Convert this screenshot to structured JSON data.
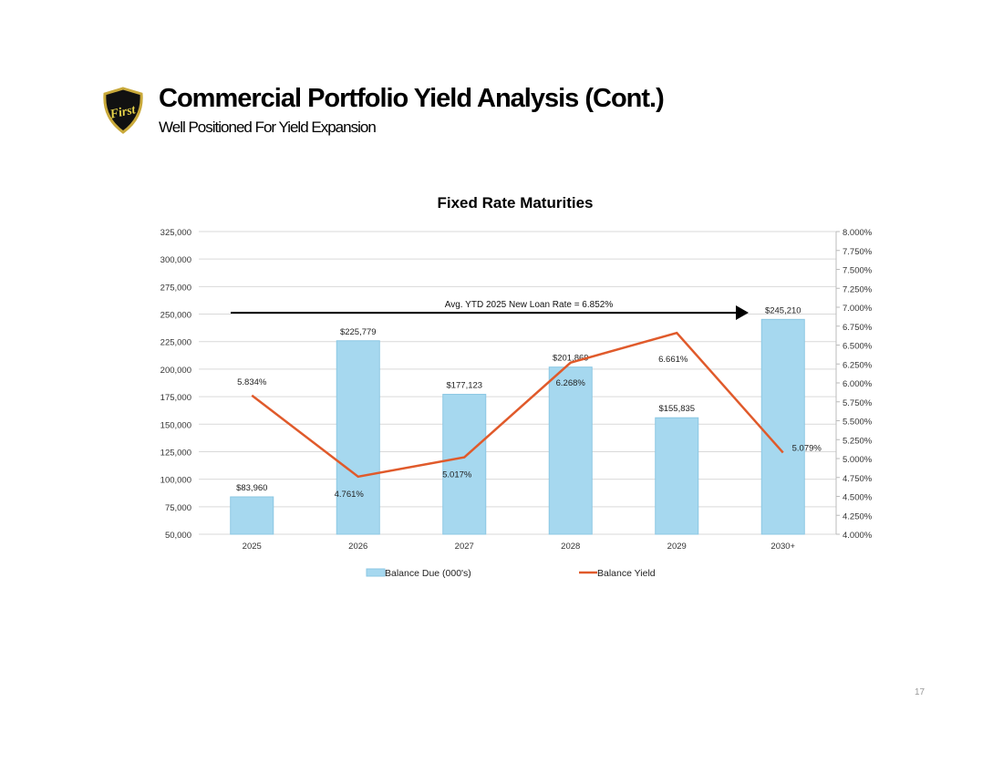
{
  "header": {
    "title": "Commercial Portfolio Yield Analysis (Cont.)",
    "subtitle": "Well Positioned For Yield Expansion",
    "logo_text": "First"
  },
  "page_number": "17",
  "chart_data": {
    "type": "bar+line",
    "title": "Fixed Rate Maturities",
    "categories": [
      "2025",
      "2026",
      "2027",
      "2028",
      "2029",
      "2030+"
    ],
    "series": [
      {
        "name": "Balance Due (000's)",
        "type": "bar",
        "axis": "left",
        "color": "#a6d8ef",
        "values": [
          83960,
          225779,
          177123,
          201869,
          155835,
          245210
        ],
        "labels": [
          "$83,960",
          "$225,779",
          "$177,123",
          "$201,869",
          "$155,835",
          "$245,210"
        ]
      },
      {
        "name": "Balance Yield",
        "type": "line",
        "axis": "right",
        "color": "#e05a2b",
        "values": [
          5.834,
          4.761,
          5.017,
          6.268,
          6.661,
          5.079
        ],
        "labels": [
          "5.834%",
          "4.761%",
          "5.017%",
          "6.268%",
          "6.661%",
          "5.079%"
        ]
      }
    ],
    "left_axis": {
      "range": [
        50000,
        325000
      ],
      "ticks": [
        "50,000",
        "75,000",
        "100,000",
        "125,000",
        "150,000",
        "175,000",
        "200,000",
        "225,000",
        "250,000",
        "275,000",
        "300,000",
        "325,000"
      ]
    },
    "right_axis": {
      "range": [
        4.0,
        8.0
      ],
      "ticks": [
        "4.000%",
        "4.250%",
        "4.500%",
        "4.750%",
        "5.000%",
        "5.250%",
        "5.500%",
        "5.750%",
        "6.000%",
        "6.250%",
        "6.500%",
        "6.750%",
        "7.000%",
        "7.250%",
        "7.500%",
        "7.750%",
        "8.000%"
      ]
    },
    "grid": true,
    "legend": "bottom",
    "annotation": {
      "text": "Avg. YTD 2025 New Loan Rate = 6.852%",
      "value": 6.852
    }
  }
}
